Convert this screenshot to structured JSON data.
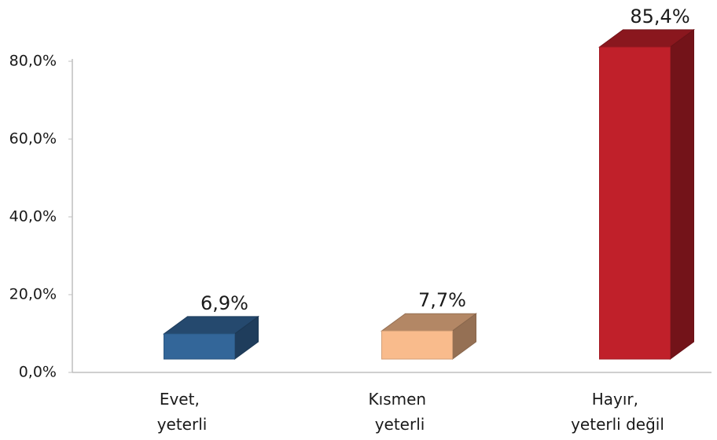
{
  "chart_data": {
    "type": "bar3d",
    "categories": [
      "Evet, yeterli",
      "Kısmen yeterli",
      "Hayır, yeterli değil"
    ],
    "values": [
      6.9,
      7.7,
      85.4
    ],
    "value_labels": [
      "6,9%",
      "7,7%",
      "85,4%"
    ],
    "colors": [
      "#336699",
      "#f9bb8c",
      "#c0202a"
    ],
    "ylim": [
      0,
      80
    ],
    "yticks": [
      {
        "value": 0,
        "label": "0,0%"
      },
      {
        "value": 20,
        "label": "20,0%"
      },
      {
        "value": 40,
        "label": "40,0%"
      },
      {
        "value": 60,
        "label": "60,0%"
      },
      {
        "value": 80,
        "label": "80,0%"
      }
    ]
  }
}
